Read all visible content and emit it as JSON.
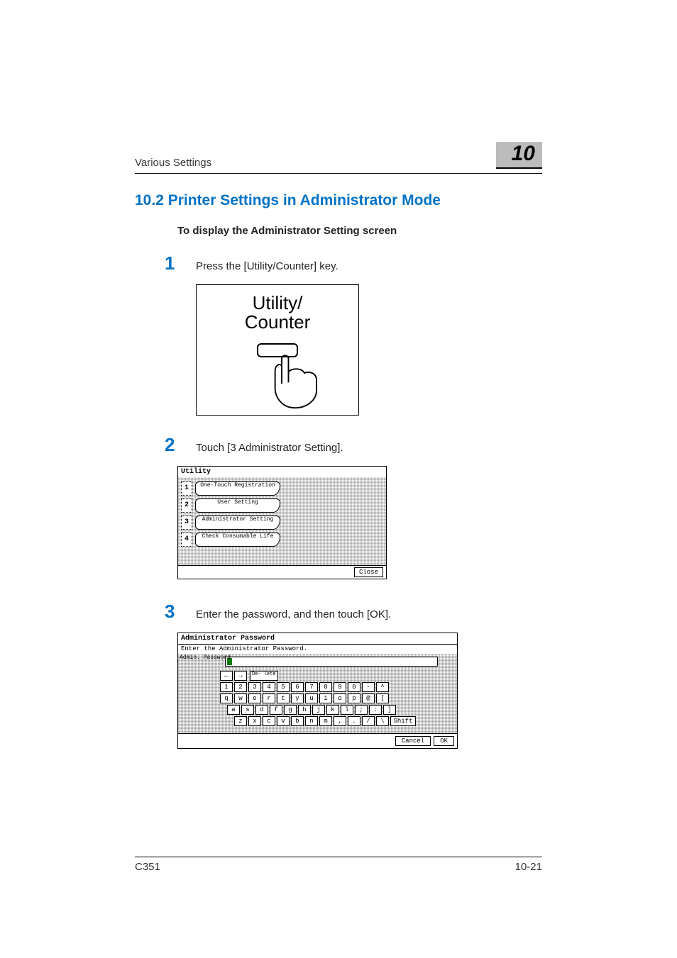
{
  "header": {
    "section_label": "Various Settings",
    "chapter_number": "10"
  },
  "section": {
    "title": "10.2   Printer Settings in Administrator Mode",
    "subtitle": "To display the Administrator Setting screen"
  },
  "steps": [
    {
      "num": "1",
      "text": "Press the [Utility/Counter] key."
    },
    {
      "num": "2",
      "text": "Touch [3 Administrator Setting]."
    },
    {
      "num": "3",
      "text": "Enter the password, and then touch [OK]."
    }
  ],
  "utility_button": {
    "line1": "Utility/",
    "line2": "Counter"
  },
  "utility_menu": {
    "title": "Utility",
    "items": [
      {
        "n": "1",
        "label": "One-Touch Registration"
      },
      {
        "n": "2",
        "label": "User Setting"
      },
      {
        "n": "3",
        "label": "Administrator Setting"
      },
      {
        "n": "4",
        "label": "Check Consumable Life"
      }
    ],
    "close": "Close"
  },
  "password_screen": {
    "title": "Administrator Password",
    "subtitle": "Enter the Administrator Password.",
    "field_label": "Admin. Password",
    "keyboard_rows": [
      {
        "leading": "arrows-del",
        "keys": []
      },
      {
        "keys": [
          "1",
          "2",
          "3",
          "4",
          "5",
          "6",
          "7",
          "8",
          "9",
          "0",
          "-",
          "^"
        ]
      },
      {
        "keys": [
          "q",
          "w",
          "e",
          "r",
          "t",
          "y",
          "u",
          "i",
          "o",
          "p",
          "@",
          "["
        ]
      },
      {
        "indent": 1,
        "keys": [
          "a",
          "s",
          "d",
          "f",
          "g",
          "h",
          "j",
          "k",
          "l",
          ";",
          ":",
          "]"
        ]
      },
      {
        "indent": 2,
        "keys": [
          "z",
          "x",
          "c",
          "v",
          "b",
          "n",
          "m",
          ",",
          ".",
          "/",
          "\\"
        ],
        "trailing": "Shift"
      }
    ],
    "delete_label": "De- lete",
    "shift_label": "Shift",
    "cancel": "Cancel",
    "ok": "OK"
  },
  "footer": {
    "model": "C351",
    "page": "10-21"
  },
  "colors": {
    "accent_blue": "#0072c6",
    "chapter_bg": "#bcbcbc",
    "cursor_green": "#0b7d0b"
  }
}
